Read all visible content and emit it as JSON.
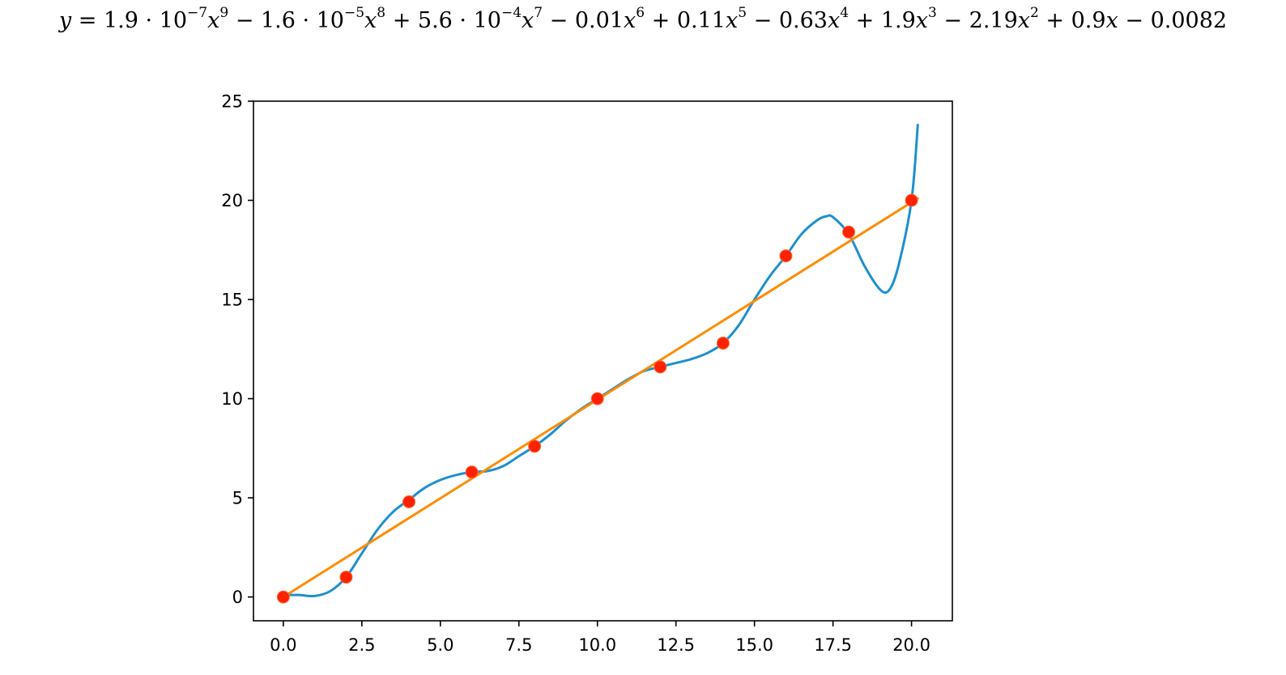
{
  "equation": {
    "lhs": "y",
    "equals": " = ",
    "terms": [
      {
        "coef": "1.9 · 10",
        "coef_exp": "−7",
        "var": "x",
        "exp": "9"
      },
      {
        "op": " − ",
        "coef": "1.6 · 10",
        "coef_exp": "−5",
        "var": "x",
        "exp": "8"
      },
      {
        "op": " + ",
        "coef": "5.6 · 10",
        "coef_exp": "−4",
        "var": "x",
        "exp": "7"
      },
      {
        "op": " − ",
        "coef": "0.01",
        "var": "x",
        "exp": "6"
      },
      {
        "op": " + ",
        "coef": "0.11",
        "var": "x",
        "exp": "5"
      },
      {
        "op": " − ",
        "coef": "0.63",
        "var": "x",
        "exp": "4"
      },
      {
        "op": " + ",
        "coef": "1.9",
        "var": "x",
        "exp": "3"
      },
      {
        "op": " − ",
        "coef": "2.19",
        "var": "x",
        "exp": "2"
      },
      {
        "op": " + ",
        "coef": "0.9",
        "var": "x",
        "exp": ""
      },
      {
        "op": " − ",
        "coef": "0.0082",
        "var": "",
        "exp": ""
      }
    ]
  },
  "chart_data": {
    "type": "scatter",
    "title": "",
    "xlabel": "",
    "ylabel": "",
    "xlim": [
      -0.95,
      21.3
    ],
    "ylim": [
      -1.2,
      25
    ],
    "xticks": [
      "0.0",
      "2.5",
      "5.0",
      "7.5",
      "10.0",
      "12.5",
      "15.0",
      "17.5",
      "20.0"
    ],
    "yticks": [
      "0",
      "5",
      "10",
      "15",
      "20",
      "25"
    ],
    "grid": false,
    "legend": "none",
    "series": [
      {
        "kind": "points",
        "color": "#ff2200",
        "edge_color": "#ff6a3a",
        "x": [
          0,
          2,
          4,
          6,
          8,
          10,
          12,
          14,
          16,
          18,
          20
        ],
        "y": [
          0,
          1.0,
          4.8,
          6.3,
          7.6,
          10.0,
          11.6,
          12.8,
          17.2,
          18.4,
          20.0
        ]
      },
      {
        "kind": "line",
        "color": "#1f8fcf",
        "x": [
          0,
          0.5,
          1.0,
          1.5,
          2.0,
          2.5,
          3.0,
          3.5,
          4.0,
          4.5,
          5.0,
          5.5,
          6.0,
          6.5,
          7.0,
          7.5,
          8.0,
          8.5,
          9.0,
          9.5,
          10.0,
          10.5,
          11.0,
          11.5,
          12.0,
          12.5,
          13.0,
          13.5,
          14.0,
          14.5,
          15.0,
          15.5,
          16.0,
          16.5,
          17.0,
          17.3,
          17.5,
          18.0,
          18.5,
          19.0,
          19.3,
          19.6,
          20.0,
          20.2
        ],
        "y": [
          0.1,
          0.1,
          0.05,
          0.3,
          1.0,
          2.2,
          3.4,
          4.3,
          4.9,
          5.5,
          5.9,
          6.15,
          6.3,
          6.35,
          6.6,
          7.1,
          7.6,
          8.2,
          8.9,
          9.5,
          10.0,
          10.5,
          11.0,
          11.4,
          11.6,
          11.8,
          12.0,
          12.3,
          12.8,
          13.7,
          15.0,
          16.2,
          17.2,
          18.3,
          19.0,
          19.2,
          19.15,
          18.3,
          16.7,
          15.5,
          15.5,
          16.8,
          20.0,
          23.8
        ]
      },
      {
        "kind": "line",
        "color": "#ff8c00",
        "x": [
          0,
          20.2
        ],
        "y": [
          0,
          20.1
        ]
      }
    ]
  }
}
